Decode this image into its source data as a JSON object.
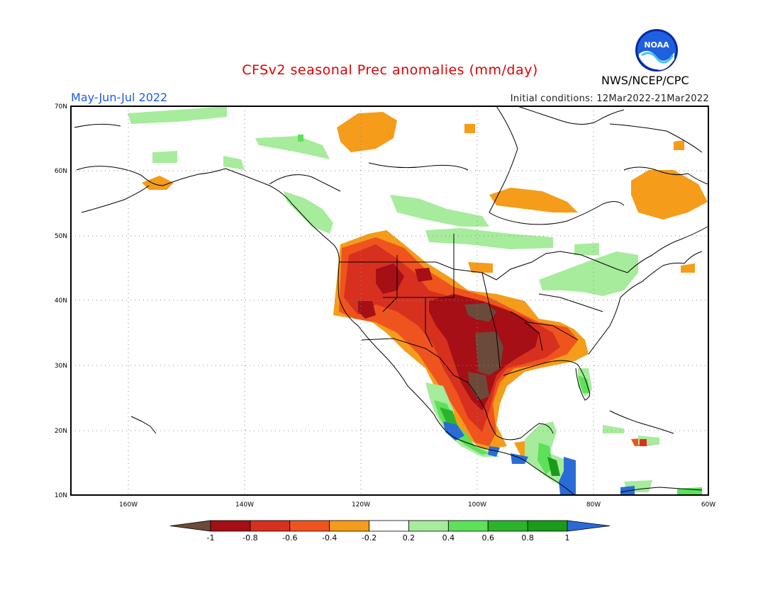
{
  "title": "CFSv2 seasonal Prec anomalies (mm/day)",
  "period": "May-Jun-Jul 2022",
  "initial_conditions": "Initial conditions: 12Mar2022-21Mar2022",
  "agency": "NWS/NCEP/CPC",
  "logo_text": "NOAA",
  "logo_icon": "noaa-logo-icon",
  "lat_labels": [
    "70N",
    "60N",
    "50N",
    "40N",
    "30N",
    "20N",
    "10N"
  ],
  "lon_labels": [
    "160W",
    "140W",
    "120W",
    "100W",
    "80W",
    "60W"
  ],
  "colorbar": {
    "labels": [
      "-1",
      "-0.8",
      "-0.6",
      "-0.4",
      "-0.2",
      "0.2",
      "0.4",
      "0.6",
      "0.8",
      "1"
    ],
    "colors": [
      "#6b4a3a",
      "#a50f15",
      "#d7301f",
      "#f0541e",
      "#f59c1a",
      "#ffffff",
      "#a6ec9c",
      "#5ee05a",
      "#2cb32c",
      "#1a9b1a",
      "#2a6bd8"
    ]
  }
}
